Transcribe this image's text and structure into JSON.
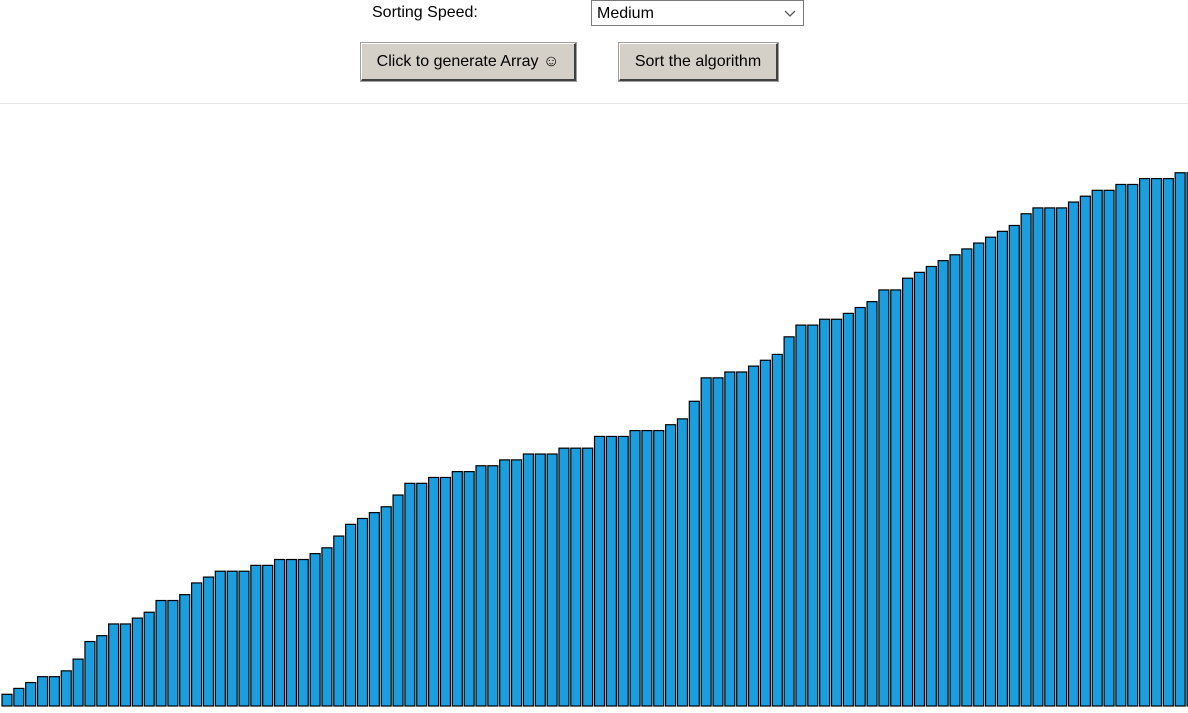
{
  "controls": {
    "speed_label": "Sorting Speed:",
    "speed_value": "Medium",
    "generate_label": "Click to generate Array ☺",
    "sort_label": "Sort the algorithm"
  },
  "icons": {
    "dropdown": "chevron-down-icon"
  },
  "colors": {
    "bar_fill": "#1a9ee0",
    "bar_stroke": "#000000"
  },
  "chart_data": {
    "type": "bar",
    "title": "",
    "xlabel": "",
    "ylabel": "",
    "ylim": [
      0,
      100
    ],
    "values": [
      2,
      3,
      4,
      5,
      5,
      6,
      8,
      11,
      12,
      14,
      14,
      15,
      16,
      18,
      18,
      19,
      21,
      22,
      23,
      23,
      23,
      24,
      24,
      25,
      25,
      25,
      26,
      27,
      29,
      31,
      32,
      33,
      34,
      36,
      38,
      38,
      39,
      39,
      40,
      40,
      41,
      41,
      42,
      42,
      43,
      43,
      43,
      44,
      44,
      44,
      46,
      46,
      46,
      47,
      47,
      47,
      48,
      49,
      52,
      56,
      56,
      57,
      57,
      58,
      59,
      60,
      63,
      65,
      65,
      66,
      66,
      67,
      68,
      69,
      71,
      71,
      73,
      74,
      75,
      76,
      77,
      78,
      79,
      80,
      81,
      82,
      84,
      85,
      85,
      85,
      86,
      87,
      88,
      88,
      89,
      89,
      90,
      90,
      90,
      91,
      91,
      92,
      93,
      94,
      95,
      96,
      97
    ]
  }
}
